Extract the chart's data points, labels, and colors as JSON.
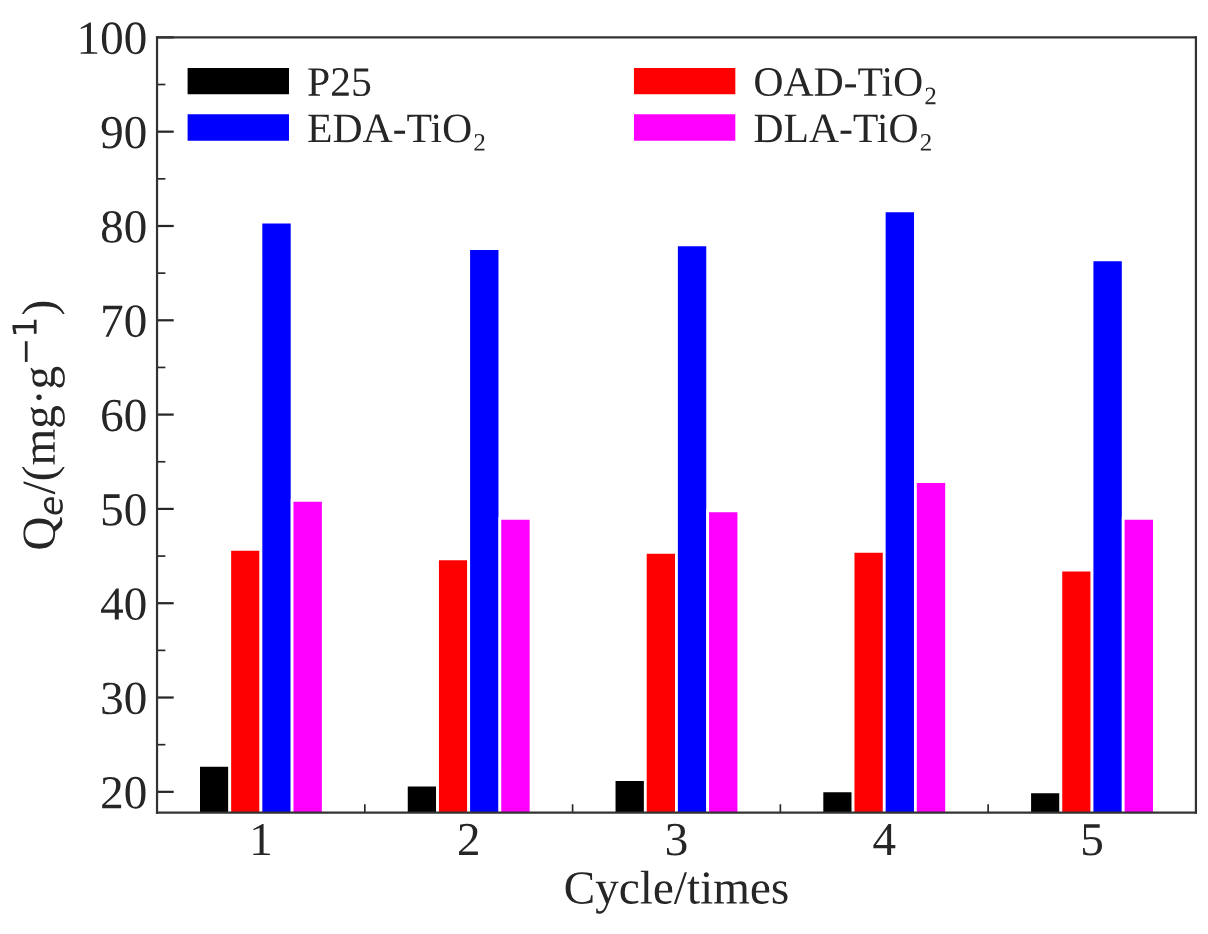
{
  "chart_data": {
    "type": "bar",
    "xlabel": "Cycle/times",
    "ylabel": "Q$_{e}$/(mg·g$^{−1}$)",
    "categories": [
      "1",
      "2",
      "3",
      "4",
      "5"
    ],
    "series": [
      {
        "name": "P25",
        "color": "#000000",
        "values": [
          22.8,
          20.7,
          21.3,
          20.1,
          20.0
        ]
      },
      {
        "name": "OAD-TiO₂",
        "color": "#ff0000",
        "values": [
          45.7,
          44.7,
          45.4,
          45.5,
          43.5
        ]
      },
      {
        "name": "EDA-TiO₂",
        "color": "#0000ff",
        "values": [
          80.4,
          77.6,
          78.0,
          81.6,
          76.4
        ]
      },
      {
        "name": "DLA-TiO₂",
        "color": "#ff00ff",
        "values": [
          50.9,
          49.0,
          49.8,
          52.9,
          49.0
        ]
      }
    ],
    "ylim": [
      17.8,
      100
    ],
    "yticks": [
      20,
      30,
      40,
      50,
      60,
      70,
      80,
      90,
      100
    ],
    "grid": false,
    "legend": "top left"
  }
}
